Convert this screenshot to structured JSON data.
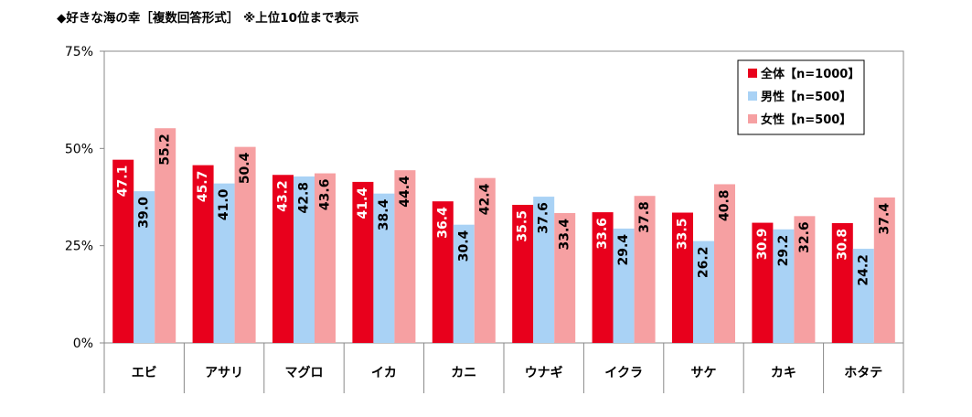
{
  "chart_data": {
    "type": "bar",
    "title": "◆好きな海の幸［複数回答形式］ ※上位10位まで表示",
    "xlabel": "",
    "ylabel": "",
    "ylim": [
      0,
      75
    ],
    "yticks": [
      "0%",
      "25%",
      "50%",
      "75%"
    ],
    "ytick_values": [
      0,
      25,
      50,
      75
    ],
    "grid": false,
    "legend_position": "top-right",
    "categories": [
      "エビ",
      "アサリ",
      "マグロ",
      "イカ",
      "カニ",
      "ウナギ",
      "イクラ",
      "サケ",
      "カキ",
      "ホタテ"
    ],
    "series": [
      {
        "name": "全体【n=1000】",
        "color": "#e8001c",
        "label_color": "#ffffff",
        "values": [
          47.1,
          45.7,
          43.2,
          41.4,
          36.4,
          35.5,
          33.6,
          33.5,
          30.9,
          30.8
        ]
      },
      {
        "name": "男性【n=500】",
        "color": "#a9d2f5",
        "label_color": "#000000",
        "values": [
          39.0,
          41.0,
          42.8,
          38.4,
          30.4,
          37.6,
          29.4,
          26.2,
          29.2,
          24.2
        ]
      },
      {
        "name": "女性【n=500】",
        "color": "#f6a0a2",
        "label_color": "#000000",
        "values": [
          55.2,
          50.4,
          43.6,
          44.4,
          42.4,
          33.4,
          37.8,
          40.8,
          32.6,
          37.4
        ]
      }
    ]
  }
}
